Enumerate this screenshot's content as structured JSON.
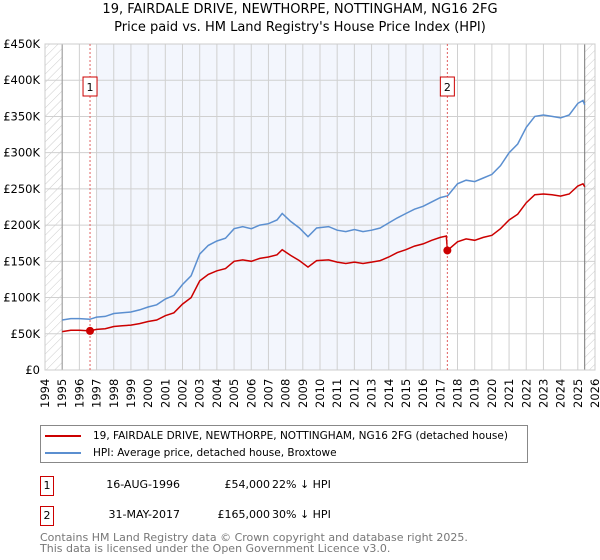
{
  "title": "19, FAIRDALE DRIVE, NEWTHORPE, NOTTINGHAM, NG16 2FG",
  "subtitle": "Price paid vs. HM Land Registry's House Price Index (HPI)",
  "chart_data": {
    "type": "line",
    "title": "19, FAIRDALE DRIVE, NEWTHORPE, NOTTINGHAM, NG16 2FG — Price paid vs. HM Land Registry's House Price Index (HPI)",
    "xlim": [
      1994,
      2026
    ],
    "ylim": [
      0,
      450000
    ],
    "x_ticks": [
      "1994",
      "1995",
      "1996",
      "1997",
      "1998",
      "1999",
      "2000",
      "2001",
      "2002",
      "2003",
      "2004",
      "2005",
      "2006",
      "2007",
      "2008",
      "2009",
      "2010",
      "2011",
      "2012",
      "2013",
      "2014",
      "2015",
      "2016",
      "2017",
      "2018",
      "2019",
      "2020",
      "2021",
      "2022",
      "2023",
      "2024",
      "2025",
      "2026"
    ],
    "y_ticks": [
      {
        "v": 0,
        "label": "£0"
      },
      {
        "v": 50000,
        "label": "£50K"
      },
      {
        "v": 100000,
        "label": "£100K"
      },
      {
        "v": 150000,
        "label": "£150K"
      },
      {
        "v": 200000,
        "label": "£200K"
      },
      {
        "v": 250000,
        "label": "£250K"
      },
      {
        "v": 300000,
        "label": "£300K"
      },
      {
        "v": 350000,
        "label": "£350K"
      },
      {
        "v": 400000,
        "label": "£400K"
      },
      {
        "v": 450000,
        "label": "£450K"
      }
    ],
    "grid": true,
    "hatched_ranges": [
      [
        1994,
        1995
      ],
      [
        2025.4,
        2026
      ]
    ],
    "shaded_range": [
      1997,
      2017
    ],
    "series": [
      {
        "name": "19, FAIRDALE DRIVE, NEWTHORPE, NOTTINGHAM, NG16 2FG (detached house)",
        "color": "#cc0000",
        "x": [
          1995,
          1995.5,
          1996,
          1996.6,
          1997,
          1997.5,
          1998,
          1998.5,
          1999,
          1999.5,
          2000,
          2000.5,
          2001,
          2001.5,
          2002,
          2002.5,
          2003,
          2003.5,
          2004,
          2004.5,
          2005,
          2005.5,
          2006,
          2006.5,
          2007,
          2007.5,
          2007.8,
          2008.3,
          2008.8,
          2009.3,
          2009.8,
          2010.5,
          2011,
          2011.5,
          2012,
          2012.5,
          2013,
          2013.5,
          2014,
          2014.5,
          2015,
          2015.5,
          2016,
          2016.5,
          2017,
          2017.35,
          2017.41,
          2018,
          2018.5,
          2019,
          2019.5,
          2020,
          2020.5,
          2021,
          2021.5,
          2022,
          2022.5,
          2023,
          2023.5,
          2024,
          2024.5,
          2025,
          2025.3,
          2025.4
        ],
        "y": [
          53,
          55,
          55,
          54,
          56,
          57,
          60,
          61,
          62,
          64,
          67,
          69,
          75,
          79,
          91,
          100,
          123,
          132,
          137,
          140,
          150,
          152,
          150,
          154,
          156,
          159,
          166,
          158,
          151,
          142,
          151,
          152,
          149,
          147,
          149,
          147,
          149,
          151,
          156,
          162,
          166,
          171,
          174,
          179,
          183,
          185,
          165,
          177,
          181,
          179,
          183,
          186,
          195,
          207,
          215,
          231,
          242,
          243,
          242,
          240,
          243,
          254,
          257,
          253
        ]
      },
      {
        "name": "HPI: Average price, detached house, Broxtowe",
        "color": "#5b8fd0",
        "x": [
          1995,
          1995.5,
          1996,
          1996.6,
          1997,
          1997.5,
          1998,
          1998.5,
          1999,
          1999.5,
          2000,
          2000.5,
          2001,
          2001.5,
          2002,
          2002.5,
          2003,
          2003.5,
          2004,
          2004.5,
          2005,
          2005.5,
          2006,
          2006.5,
          2007,
          2007.5,
          2007.8,
          2008.3,
          2008.8,
          2009.3,
          2009.8,
          2010.5,
          2011,
          2011.5,
          2012,
          2012.5,
          2013,
          2013.5,
          2014,
          2014.5,
          2015,
          2015.5,
          2016,
          2016.5,
          2017,
          2017.35,
          2017.41,
          2018,
          2018.5,
          2019,
          2019.5,
          2020,
          2020.5,
          2021,
          2021.5,
          2022,
          2022.5,
          2023,
          2023.5,
          2024,
          2024.5,
          2025,
          2025.3,
          2025.4
        ],
        "y": [
          69,
          71,
          71,
          70,
          73,
          74,
          78,
          79,
          80,
          83,
          87,
          90,
          98,
          103,
          118,
          130,
          160,
          172,
          178,
          182,
          195,
          198,
          195,
          200,
          202,
          207,
          216,
          205,
          196,
          184,
          196,
          198,
          193,
          191,
          194,
          191,
          193,
          196,
          203,
          210,
          216,
          222,
          226,
          232,
          238,
          240,
          240,
          257,
          262,
          260,
          265,
          270,
          282,
          300,
          312,
          335,
          350,
          352,
          350,
          348,
          352,
          368,
          372,
          366
        ]
      }
    ],
    "y_unit": "thousands GBP",
    "sales": [
      {
        "label": "1",
        "x": 1996.62,
        "y": 54
      },
      {
        "label": "2",
        "x": 2017.41,
        "y": 165
      }
    ]
  },
  "legend": {
    "property": "19, FAIRDALE DRIVE, NEWTHORPE, NOTTINGHAM, NG16 2FG (detached house)",
    "hpi": "HPI: Average price, detached house, Broxtowe"
  },
  "transactions": [
    {
      "num": "1",
      "date": "16-AUG-1996",
      "price": "£54,000",
      "hpi": "22% ↓ HPI"
    },
    {
      "num": "2",
      "date": "31-MAY-2017",
      "price": "£165,000",
      "hpi": "30% ↓ HPI"
    }
  ],
  "footer": [
    "Contains HM Land Registry data © Crown copyright and database right 2025.",
    "This data is licensed under the Open Government Licence v3.0."
  ]
}
